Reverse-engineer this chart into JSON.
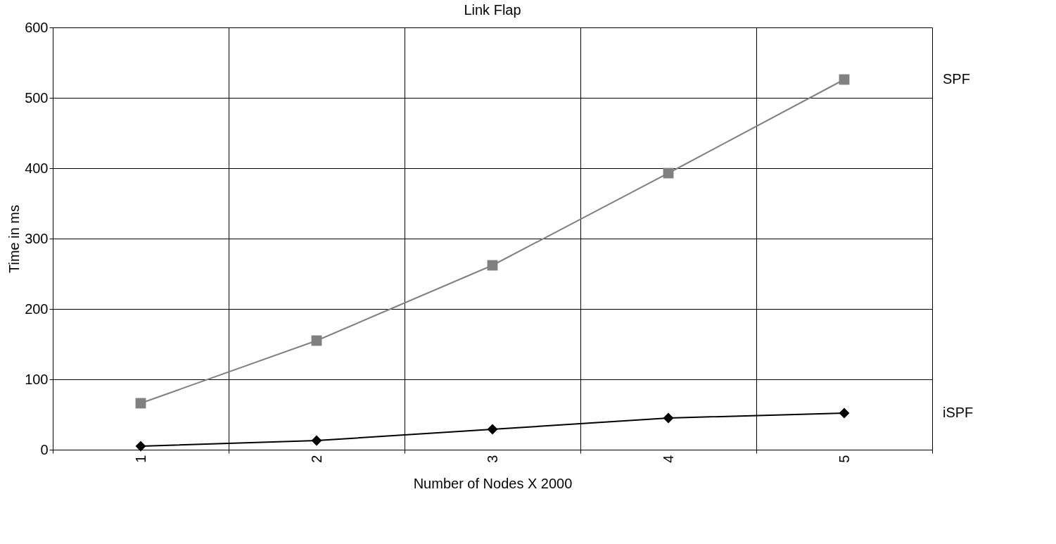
{
  "chart_data": {
    "type": "line",
    "title": "Link Flap",
    "xlabel": "Number of Nodes X 2000",
    "ylabel": "Time in ms",
    "categories": [
      "1",
      "2",
      "3",
      "4",
      "5"
    ],
    "series": [
      {
        "name": "SPF",
        "color": "#808080",
        "marker": "square",
        "values": [
          66,
          155,
          262,
          393,
          526
        ]
      },
      {
        "name": "iSPF",
        "color": "#000000",
        "marker": "diamond",
        "values": [
          5,
          13,
          29,
          45,
          52
        ]
      }
    ],
    "ylim": [
      0,
      600
    ],
    "yticks": [
      0,
      100,
      200,
      300,
      400,
      500,
      600
    ],
    "grid": true
  }
}
